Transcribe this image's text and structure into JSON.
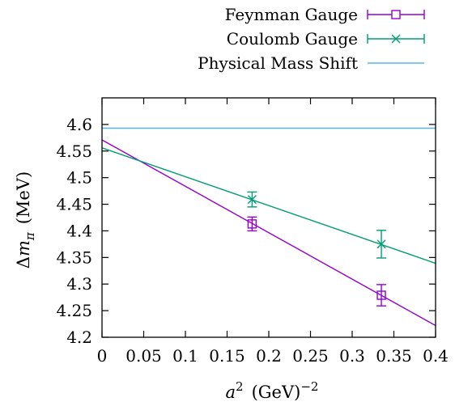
{
  "chart_data": {
    "type": "scatter",
    "title": "",
    "xlabel": {
      "base": "a",
      "sup": "2",
      "unit": "(GeV)",
      "unit_sup": "−2"
    },
    "ylabel": {
      "delta": "Δ",
      "m": "m",
      "sub": "π",
      "unit": "(MeV)"
    },
    "xlim": [
      0,
      0.4
    ],
    "ylim": [
      4.2,
      4.65
    ],
    "x_ticks": [
      "0",
      "0.05",
      "0.1",
      "0.15",
      "0.2",
      "0.25",
      "0.3",
      "0.35",
      "0.4"
    ],
    "y_ticks": [
      "4.2",
      "4.25",
      "4.3",
      "4.35",
      "4.4",
      "4.45",
      "4.5",
      "4.55",
      "4.6"
    ],
    "grid": false,
    "legend_position": "top-right, outside plot area",
    "series": [
      {
        "name": "Feynman Gauge",
        "marker": "square",
        "color": "#9400d3",
        "points": [
          {
            "x": 0.18,
            "y": 4.413,
            "err": 0.013
          },
          {
            "x": 0.335,
            "y": 4.279,
            "err": 0.02
          }
        ],
        "fit_line": {
          "x": [
            0,
            0.4
          ],
          "y": [
            4.571,
            4.222
          ]
        }
      },
      {
        "name": "Coulomb Gauge",
        "marker": "x",
        "color": "#009e73",
        "points": [
          {
            "x": 0.18,
            "y": 4.459,
            "err": 0.014
          },
          {
            "x": 0.335,
            "y": 4.375,
            "err": 0.026
          }
        ],
        "fit_line": {
          "x": [
            0,
            0.4
          ],
          "y": [
            4.556,
            4.339
          ]
        }
      },
      {
        "name": "Physical Mass Shift",
        "marker": "none",
        "color": "#56b4e9",
        "hline": 4.593
      }
    ]
  }
}
